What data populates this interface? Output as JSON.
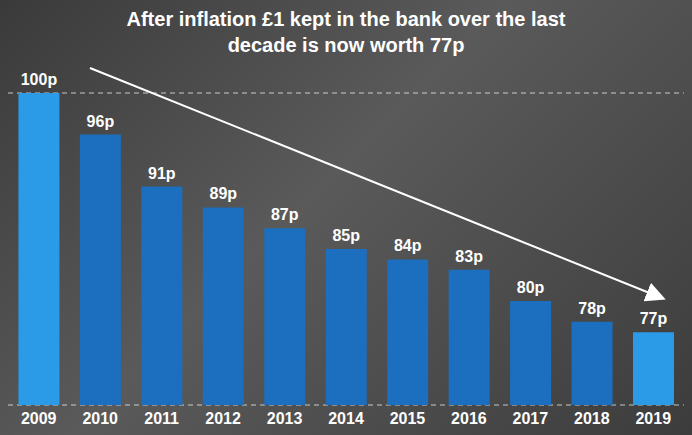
{
  "chart_data": {
    "type": "bar",
    "title": "After inflation £1 kept in the bank over the last decade is now worth 77p",
    "categories": [
      "2009",
      "2010",
      "2011",
      "2012",
      "2013",
      "2014",
      "2015",
      "2016",
      "2017",
      "2018",
      "2019"
    ],
    "values": [
      100,
      96,
      91,
      89,
      87,
      85,
      84,
      83,
      80,
      78,
      77
    ],
    "value_labels": [
      "100p",
      "96p",
      "91p",
      "89p",
      "87p",
      "85p",
      "84p",
      "83p",
      "80p",
      "78p",
      "77p"
    ],
    "colors": [
      "#2b9be8",
      "#1c6fbf",
      "#1c6fbf",
      "#1c6fbf",
      "#1c6fbf",
      "#1c6fbf",
      "#1c6fbf",
      "#1c6fbf",
      "#1c6fbf",
      "#1c6fbf",
      "#2b9be8"
    ],
    "ylim": [
      70,
      100
    ],
    "yticks": [
      70,
      75,
      80,
      85,
      90,
      95,
      100
    ],
    "grid": true,
    "data_labels": true,
    "tick_labels": "x"
  }
}
